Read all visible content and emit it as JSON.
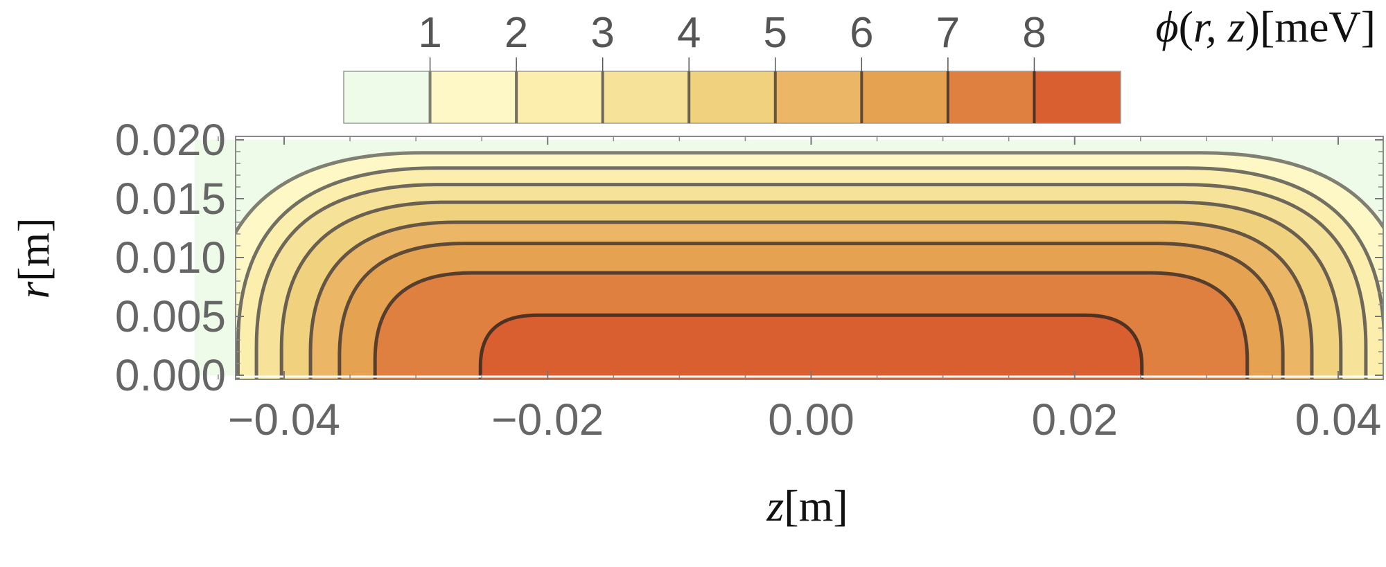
{
  "chart_data": {
    "type": "contour",
    "title": "",
    "xlabel_var": "z",
    "xlabel_unit": "[m]",
    "ylabel_var": "r",
    "ylabel_unit": "[m]",
    "colorbar_label_prefix": "ϕ(",
    "colorbar_label_vars": "r, z",
    "colorbar_label_suffix": ")[meV]",
    "x_range": [
      -0.047,
      0.047
    ],
    "y_range": [
      0.0,
      0.0205
    ],
    "x_ticks": [
      -0.04,
      -0.02,
      0.0,
      0.02,
      0.04
    ],
    "x_tick_labels": [
      "−0.04",
      "−0.02",
      "0.00",
      "0.02",
      "0.04"
    ],
    "y_ticks": [
      0.0,
      0.005,
      0.01,
      0.015,
      0.02
    ],
    "y_tick_labels": [
      "0.000",
      "0.005",
      "0.010",
      "0.015",
      "0.020"
    ],
    "domain": {
      "z": [
        -0.0468,
        0.0468
      ],
      "r": [
        0.0,
        0.02
      ]
    },
    "contour_levels": [
      1,
      2,
      3,
      4,
      5,
      6,
      7,
      8
    ],
    "colorbar_tick_labels": [
      "1",
      "2",
      "3",
      "4",
      "5",
      "6",
      "7",
      "8"
    ],
    "band_colors": [
      "#eefbe8",
      "#fdf8c6",
      "#fcefad",
      "#f7e29a",
      "#f0d27e",
      "#ebb666",
      "#e5a250",
      "#e08040",
      "#d95e30"
    ],
    "line_colors": [
      "#7f7f72",
      "#727063",
      "#6e685a",
      "#6a6050",
      "#655544",
      "#5f4a38",
      "#573e2c",
      "#4f3222"
    ],
    "contours": [
      {
        "level": 1,
        "z_half_at_base": 0.0456,
        "r_top": 0.0189
      },
      {
        "level": 2,
        "z_half_at_base": 0.0435,
        "r_top": 0.0176
      },
      {
        "level": 3,
        "z_half_at_base": 0.0421,
        "r_top": 0.0162
      },
      {
        "level": 4,
        "z_half_at_base": 0.0402,
        "r_top": 0.0147
      },
      {
        "level": 5,
        "z_half_at_base": 0.038,
        "r_top": 0.013
      },
      {
        "level": 6,
        "z_half_at_base": 0.0358,
        "r_top": 0.0112
      },
      {
        "level": 7,
        "z_half_at_base": 0.0331,
        "r_top": 0.0087
      },
      {
        "level": 8,
        "z_half_at_base": 0.0251,
        "r_top": 0.0051
      }
    ]
  }
}
